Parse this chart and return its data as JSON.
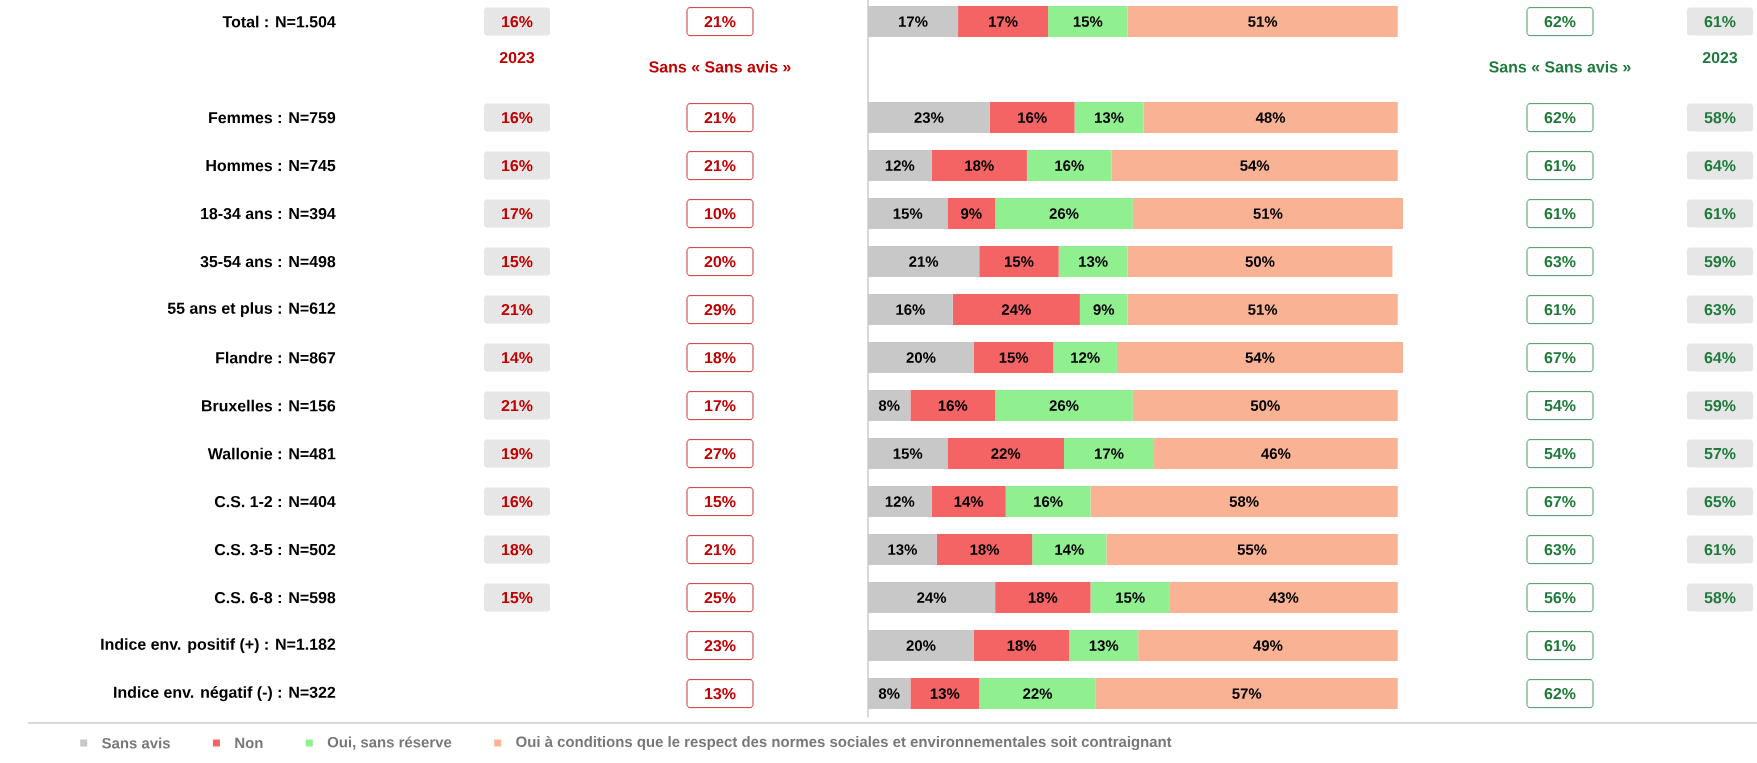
{
  "chart_data": {
    "type": "bar",
    "orientation": "horizontal",
    "stacked": true,
    "categories": [
      "Total : N=1.504",
      "Femmes : N=759",
      "Hommes : N=745",
      "18-34 ans : N=394",
      "35-54 ans : N=498",
      "55 ans et plus : N=612",
      "Flandre : N=867",
      "Bruxelles : N=156",
      "Wallonie : N=481",
      "C.S. 1-2 : N=404",
      "C.S. 3-5 : N=502",
      "C.S. 6-8 : N=598",
      "Indice env. positif (+) : N=1.182",
      "Indice env. négatif (-) : N=322"
    ],
    "series": [
      {
        "name": "Sans avis",
        "color": "#c8c8c8",
        "values": [
          17,
          23,
          12,
          15,
          21,
          16,
          20,
          8,
          15,
          12,
          13,
          24,
          20,
          8
        ],
        "value_labels": [
          "17%",
          "23%",
          "12%",
          "15%",
          "21%",
          "16%",
          "20%",
          "8%",
          "15%",
          "12%",
          "13%",
          "24%",
          "20%",
          "8%"
        ]
      },
      {
        "name": "Non",
        "color": "#f46464",
        "values": [
          17,
          16,
          18,
          9,
          15,
          24,
          15,
          16,
          22,
          14,
          18,
          18,
          18,
          13
        ],
        "value_labels": [
          "17%",
          "16%",
          "18%",
          "9%",
          "15%",
          "24%",
          "15%",
          "16%",
          "22%",
          "14%",
          "18%",
          "18%",
          "18%",
          "13%"
        ]
      },
      {
        "name": "Oui, sans réserve",
        "color": "#90f090",
        "values": [
          15,
          13,
          16,
          26,
          13,
          9,
          12,
          26,
          17,
          16,
          14,
          15,
          13,
          22
        ],
        "value_labels": [
          "15%",
          "13%",
          "16%",
          "26%",
          "13%",
          "9%",
          "12%",
          "26%",
          "17%",
          "16%",
          "14%",
          "15%",
          "13%",
          "22%"
        ]
      },
      {
        "name": "Oui à conditions que le respect des normes sociales et environnementales soit contraignant",
        "color": "#f9b294",
        "values": [
          51,
          48,
          54,
          51,
          50,
          51,
          54,
          50,
          46,
          58,
          55,
          43,
          49,
          57
        ],
        "value_labels": [
          "51%",
          "48%",
          "54%",
          "51%",
          "50%",
          "51%",
          "54%",
          "50%",
          "46%",
          "58%",
          "55%",
          "43%",
          "49%",
          "57%"
        ]
      }
    ],
    "xlim": [
      0,
      101
    ],
    "tick_labels": "y",
    "legend": "bottom",
    "annotations": [
      "2023",
      "Sans « Sans avis »",
      "Sans « Sans avis »",
      "2023",
      "16%",
      "21%",
      "62%",
      "61%",
      "16%",
      "21%",
      "62%",
      "58%",
      "16%",
      "21%",
      "61%",
      "64%",
      "17%",
      "10%",
      "61%",
      "61%",
      "15%",
      "20%",
      "63%",
      "59%",
      "21%",
      "29%",
      "61%",
      "63%",
      "14%",
      "18%",
      "67%",
      "64%",
      "21%",
      "17%",
      "54%",
      "59%",
      "19%",
      "27%",
      "54%",
      "57%",
      "16%",
      "15%",
      "67%",
      "65%",
      "18%",
      "21%",
      "63%",
      "61%",
      "15%",
      "25%",
      "56%",
      "58%",
      "23%",
      "61%",
      "13%",
      "62%"
    ]
  }
}
